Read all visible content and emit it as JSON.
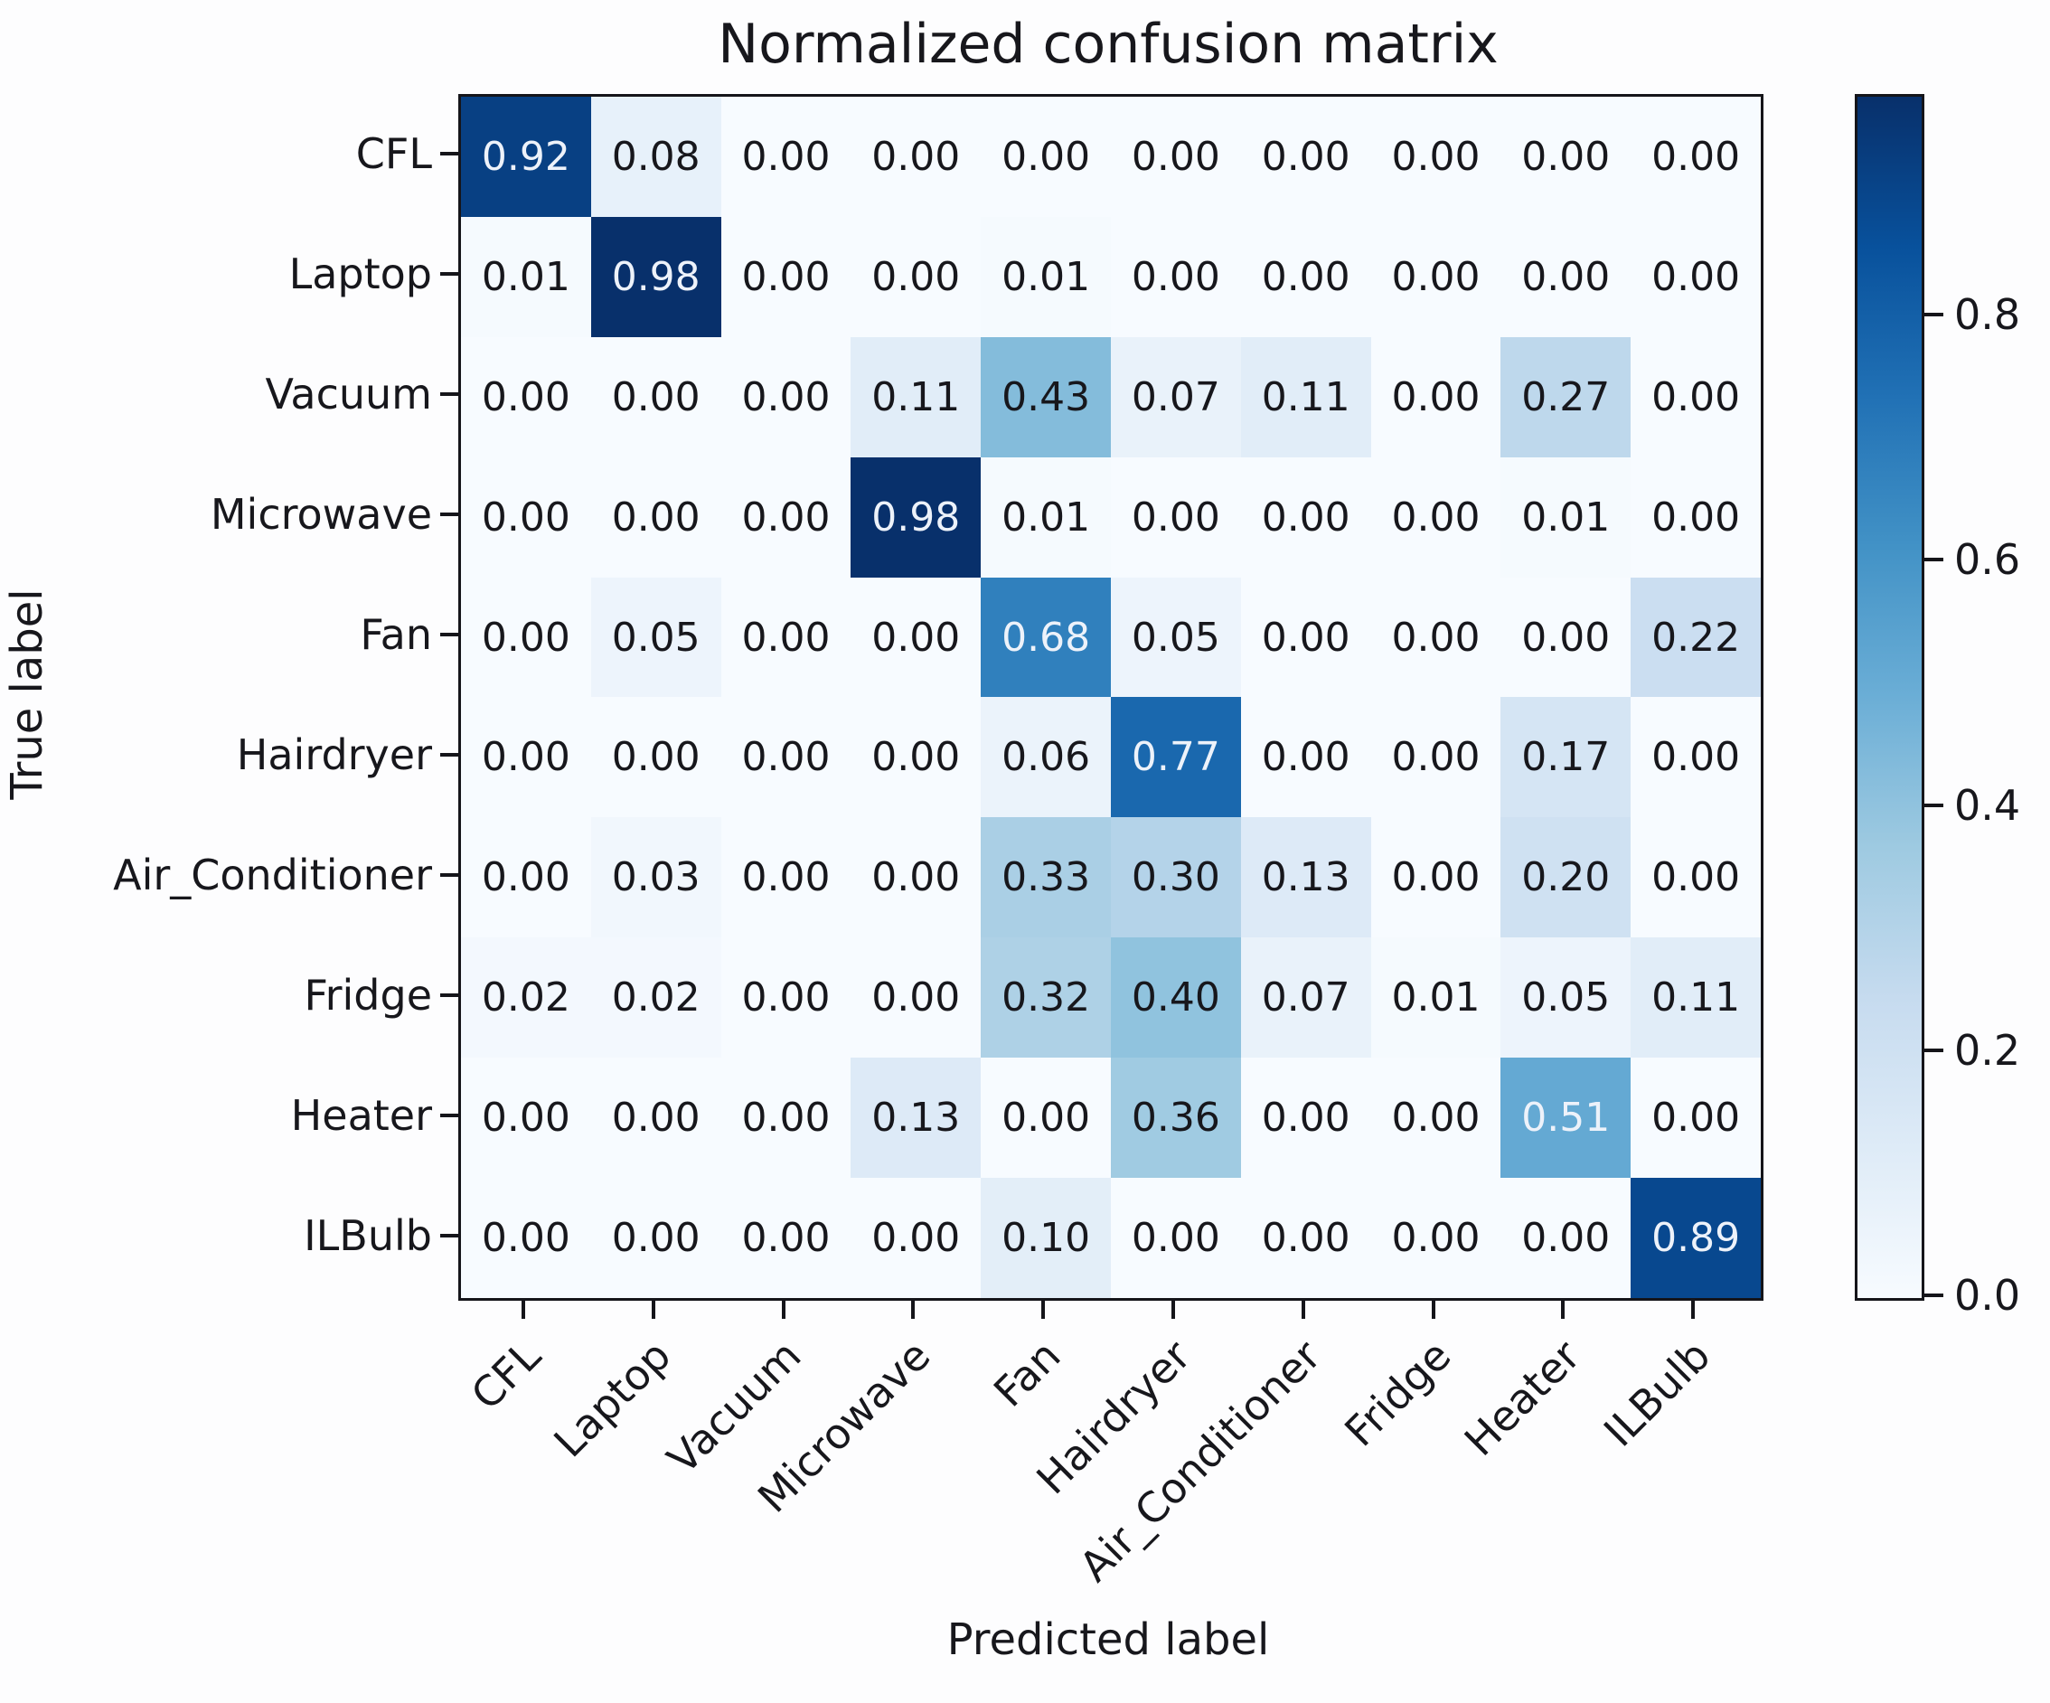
{
  "chart_data": {
    "type": "heatmap",
    "title": "Normalized confusion matrix",
    "xlabel": "Predicted label",
    "ylabel": "True label",
    "categories": [
      "CFL",
      "Laptop",
      "Vacuum",
      "Microwave",
      "Fan",
      "Hairdryer",
      "Air_Conditioner",
      "Fridge",
      "Heater",
      "ILBulb"
    ],
    "matrix": [
      [
        0.92,
        0.08,
        0.0,
        0.0,
        0.0,
        0.0,
        0.0,
        0.0,
        0.0,
        0.0
      ],
      [
        0.01,
        0.98,
        0.0,
        0.0,
        0.01,
        0.0,
        0.0,
        0.0,
        0.0,
        0.0
      ],
      [
        0.0,
        0.0,
        0.0,
        0.11,
        0.43,
        0.07,
        0.11,
        0.0,
        0.27,
        0.0
      ],
      [
        0.0,
        0.0,
        0.0,
        0.98,
        0.01,
        0.0,
        0.0,
        0.0,
        0.01,
        0.0
      ],
      [
        0.0,
        0.05,
        0.0,
        0.0,
        0.68,
        0.05,
        0.0,
        0.0,
        0.0,
        0.22
      ],
      [
        0.0,
        0.0,
        0.0,
        0.0,
        0.06,
        0.77,
        0.0,
        0.0,
        0.17,
        0.0
      ],
      [
        0.0,
        0.03,
        0.0,
        0.0,
        0.33,
        0.3,
        0.13,
        0.0,
        0.2,
        0.0
      ],
      [
        0.02,
        0.02,
        0.0,
        0.0,
        0.32,
        0.4,
        0.07,
        0.01,
        0.05,
        0.11
      ],
      [
        0.0,
        0.0,
        0.0,
        0.13,
        0.0,
        0.36,
        0.0,
        0.0,
        0.51,
        0.0
      ],
      [
        0.0,
        0.0,
        0.0,
        0.0,
        0.1,
        0.0,
        0.0,
        0.0,
        0.0,
        0.89
      ]
    ],
    "value_decimals": 2,
    "vmin": 0.0,
    "vmax": 0.98,
    "grid": false,
    "legend_position": "right-colorbar",
    "colorbar_ticks": [
      0.0,
      0.2,
      0.4,
      0.6,
      0.8
    ],
    "colorbar_tick_labels": [
      "0.0",
      "0.2",
      "0.4",
      "0.6",
      "0.8"
    ],
    "colormap": "Blues",
    "colormap_anchors": [
      {
        "pos": 0.0,
        "hex": "#f7fbff"
      },
      {
        "pos": 0.125,
        "hex": "#deebf7"
      },
      {
        "pos": 0.25,
        "hex": "#c6dbef"
      },
      {
        "pos": 0.375,
        "hex": "#9ecae1"
      },
      {
        "pos": 0.5,
        "hex": "#6baed6"
      },
      {
        "pos": 0.625,
        "hex": "#4292c6"
      },
      {
        "pos": 0.75,
        "hex": "#2171b5"
      },
      {
        "pos": 0.875,
        "hex": "#08519c"
      },
      {
        "pos": 1.0,
        "hex": "#08306b"
      }
    ],
    "text_threshold": 0.49,
    "colors": {
      "cell_text_dark": "#17171c",
      "cell_text_light": "#edf2fa",
      "spine": "#15151a",
      "background": "#fdfdfe"
    }
  }
}
